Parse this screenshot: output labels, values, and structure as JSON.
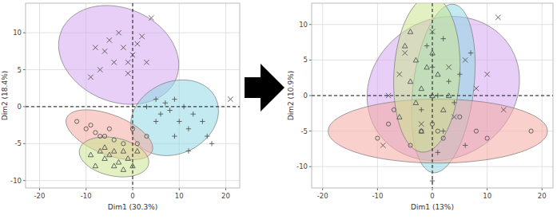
{
  "chart_data": [
    {
      "type": "scatter",
      "x_label": "Dim1 (30.3%)",
      "y_label": "Dim2 (18.4%)",
      "xlim": [
        -23,
        23
      ],
      "ylim": [
        -11,
        14
      ],
      "xticks": [
        -20,
        -10,
        0,
        10,
        20
      ],
      "yticks": [
        -10,
        -5,
        0,
        5,
        10
      ],
      "grid": true,
      "series": [
        {
          "color": "#d4a8f0",
          "marker": "x",
          "x": [
            -8,
            -6,
            -5,
            -3,
            -2,
            -1,
            0,
            1,
            2,
            -4,
            -7,
            3,
            -9,
            4,
            -1,
            21
          ],
          "values": [
            8,
            7.5,
            9,
            10,
            8,
            6,
            7,
            8.5,
            9.5,
            6,
            5,
            6,
            4,
            12,
            4.5,
            1
          ],
          "ellipse": {
            "cx": -3,
            "cy": 7,
            "rx": 13,
            "ry": 6.5,
            "angle": -8
          }
        },
        {
          "color": "#8fd8e3",
          "marker": "plus",
          "x": [
            3,
            5,
            6,
            7,
            8,
            9,
            10,
            11,
            12,
            13,
            15,
            16,
            5,
            9,
            12,
            17
          ],
          "values": [
            0,
            1,
            -1,
            0.5,
            -0.5,
            1,
            -2,
            0,
            -3,
            -1,
            -2,
            -4,
            -2,
            -4,
            -6,
            -5
          ],
          "ellipse": {
            "cx": 9,
            "cy": -1.5,
            "rx": 9.5,
            "ry": 5,
            "angle": 8
          }
        },
        {
          "color": "#f5aaa3",
          "marker": "circle",
          "x": [
            -12,
            -10,
            -9,
            -8,
            -6,
            -4,
            -2,
            0,
            1,
            -5,
            -7,
            3
          ],
          "values": [
            -2,
            -3,
            -2.5,
            -3.5,
            -4,
            -4.5,
            -5,
            -3,
            -5,
            -3,
            -4,
            -4
          ],
          "ellipse": {
            "cx": -5,
            "cy": -3.8,
            "rx": 9.5,
            "ry": 2.8,
            "angle": -12
          }
        },
        {
          "color": "#cbe38f",
          "marker": "triangle",
          "x": [
            -9,
            -7,
            -6,
            -5,
            -4,
            -3,
            -2,
            -1,
            0,
            -6,
            -4,
            -2,
            1,
            -8
          ],
          "values": [
            -6.5,
            -6,
            -7,
            -6.5,
            -6,
            -7.5,
            -6,
            -7,
            -8,
            -5.5,
            -8,
            -8.5,
            -6,
            -8
          ],
          "ellipse": {
            "cx": -4,
            "cy": -6.8,
            "rx": 7.5,
            "ry": 2.6,
            "angle": -6
          }
        }
      ]
    },
    {
      "type": "scatter",
      "x_label": "Dim1 (13%)",
      "y_label": "Dim2 (10.9%)",
      "xlim": [
        -22,
        22
      ],
      "ylim": [
        -13,
        13
      ],
      "xticks": [
        -20,
        -10,
        0,
        10,
        20
      ],
      "yticks": [
        -10,
        -5,
        0,
        5,
        10
      ],
      "grid": true,
      "series": [
        {
          "color": "#d4a8f0",
          "marker": "x",
          "x": [
            -9,
            -8,
            -5,
            0,
            3,
            6,
            8,
            10,
            12,
            13,
            -2,
            4,
            -6
          ],
          "values": [
            -7,
            0,
            6,
            9,
            4,
            5,
            1,
            3,
            11,
            -2,
            -4,
            -3,
            3
          ],
          "ellipse": {
            "cx": 2,
            "cy": 1,
            "rx": 14,
            "ry": 10,
            "angle": 10
          }
        },
        {
          "color": "#8fd8e3",
          "marker": "plus",
          "x": [
            0,
            1,
            2,
            1,
            3,
            0,
            -1,
            2,
            4,
            5,
            -2,
            6,
            7
          ],
          "values": [
            -12,
            -8,
            -5,
            0,
            2,
            4,
            7,
            8,
            -1,
            3,
            -2,
            -7,
            6
          ],
          "ellipse": {
            "cx": 2,
            "cy": 1,
            "rx": 5.5,
            "ry": 12,
            "angle": -10
          }
        },
        {
          "color": "#f5aaa3",
          "marker": "circle",
          "x": [
            -10,
            -7,
            -4,
            -2,
            0,
            1,
            2,
            5,
            8,
            10,
            18,
            -8
          ],
          "values": [
            -6,
            -2,
            -7,
            -5,
            -4,
            -5,
            -6,
            -3,
            -5,
            -6,
            -5,
            -4
          ],
          "ellipse": {
            "cx": 1,
            "cy": -5,
            "rx": 20,
            "ry": 4.5,
            "angle": 0
          }
        },
        {
          "color": "#cbe38f",
          "marker": "triangle",
          "x": [
            -5,
            -4,
            -3,
            -2,
            -1,
            0,
            -3,
            1,
            2,
            -4,
            -2,
            3,
            -6,
            0
          ],
          "values": [
            7,
            2,
            5,
            1,
            4,
            6,
            -1,
            3,
            -2,
            9,
            -5,
            0,
            -3,
            0
          ],
          "ellipse": {
            "cx": -1,
            "cy": 3,
            "rx": 6,
            "ry": 11,
            "angle": -5
          }
        }
      ]
    }
  ]
}
